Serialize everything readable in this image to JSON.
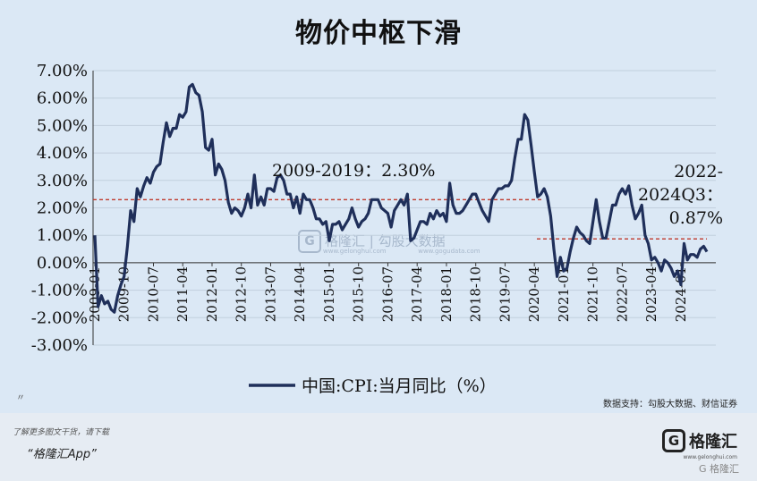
{
  "header": {
    "title": "物价中枢下滑"
  },
  "chart_data": {
    "type": "line",
    "title": "物价中枢下滑",
    "ylim": [
      -3,
      7
    ],
    "yticks": [
      "7.00%",
      "6.00%",
      "5.00%",
      "4.00%",
      "3.00%",
      "2.00%",
      "1.00%",
      "0.00%",
      "-1.00%",
      "-2.00%",
      "-3.00%"
    ],
    "xticks": [
      "2009-01",
      "2009-10",
      "2010-07",
      "2011-04",
      "2012-01",
      "2012-10",
      "2013-07",
      "2014-04",
      "2015-01",
      "2015-10",
      "2016-07",
      "2017-04",
      "2018-01",
      "2018-10",
      "2019-07",
      "2020-04",
      "2021-01",
      "2021-10",
      "2022-07",
      "2023-04",
      "2024-01"
    ],
    "grid": true,
    "legend": {
      "label": "中国:CPI:当月同比（%）",
      "position": "bottom"
    },
    "series": [
      {
        "name": "中国:CPI:当月同比（%）",
        "color": "#1f2f5a",
        "values": [
          1.0,
          -1.6,
          -1.2,
          -1.5,
          -1.4,
          -1.7,
          -1.8,
          -1.2,
          -0.8,
          -0.5,
          0.6,
          1.9,
          1.5,
          2.7,
          2.4,
          2.8,
          3.1,
          2.9,
          3.3,
          3.5,
          3.6,
          4.4,
          5.1,
          4.6,
          4.9,
          4.9,
          5.4,
          5.3,
          5.5,
          6.4,
          6.5,
          6.2,
          6.1,
          5.5,
          4.2,
          4.1,
          4.5,
          3.2,
          3.6,
          3.4,
          3.0,
          2.2,
          1.8,
          2.0,
          1.9,
          1.7,
          2.0,
          2.5,
          2.0,
          3.2,
          2.1,
          2.4,
          2.1,
          2.7,
          2.7,
          2.6,
          3.1,
          3.2,
          3.0,
          2.5,
          2.5,
          2.0,
          2.4,
          1.8,
          2.5,
          2.3,
          2.3,
          2.0,
          1.6,
          1.6,
          1.4,
          1.5,
          0.8,
          1.4,
          1.4,
          1.5,
          1.2,
          1.4,
          1.6,
          2.0,
          1.6,
          1.3,
          1.5,
          1.6,
          1.8,
          2.3,
          2.3,
          2.3,
          2.0,
          1.9,
          1.8,
          1.3,
          1.9,
          2.1,
          2.3,
          2.1,
          2.5,
          0.8,
          0.9,
          1.2,
          1.5,
          1.5,
          1.4,
          1.8,
          1.6,
          1.9,
          1.7,
          1.8,
          1.5,
          2.9,
          2.1,
          1.8,
          1.8,
          1.9,
          2.1,
          2.3,
          2.5,
          2.5,
          2.2,
          1.9,
          1.7,
          1.5,
          2.3,
          2.5,
          2.7,
          2.7,
          2.8,
          2.8,
          3.0,
          3.8,
          4.5,
          4.5,
          5.4,
          5.2,
          4.3,
          3.3,
          2.4,
          2.5,
          2.7,
          2.4,
          1.7,
          0.5,
          -0.5,
          0.2,
          -0.3,
          -0.2,
          0.4,
          0.9,
          1.3,
          1.1,
          1.0,
          0.8,
          0.7,
          1.5,
          2.3,
          1.5,
          0.9,
          0.9,
          1.5,
          2.1,
          2.1,
          2.5,
          2.7,
          2.5,
          2.8,
          2.1,
          1.6,
          1.8,
          2.1,
          1.0,
          0.7,
          0.1,
          0.2,
          0.0,
          -0.3,
          0.1,
          0.0,
          -0.2,
          -0.5,
          -0.3,
          -0.8,
          0.7,
          0.1,
          0.3,
          0.3,
          0.2,
          0.5,
          0.6,
          0.4
        ]
      }
    ],
    "annotations": [
      {
        "text": "2009-2019：2.30%",
        "value": 2.3
      },
      {
        "text_lines": [
          "2022-",
          "2024Q3：",
          "0.87%"
        ],
        "value": 0.87
      }
    ]
  },
  "source": "数据支持：勾股大数据、财信证券",
  "watermark": {
    "logo": "G",
    "name": "格隆汇",
    "separator": "|",
    "name2": "勾股大数据",
    "sub1": "www.gelonghui.com",
    "sub2": "www.gogudata.com"
  },
  "note_mark": "〃",
  "footer": {
    "promo": "了解更多图文干货，请下载",
    "app": "“格隆汇App”",
    "brand_logo": "G",
    "brand_name": "格隆汇",
    "brand_sub": "www.gelonghui.com",
    "corner_logo": "G",
    "corner_name": "格隆汇"
  }
}
